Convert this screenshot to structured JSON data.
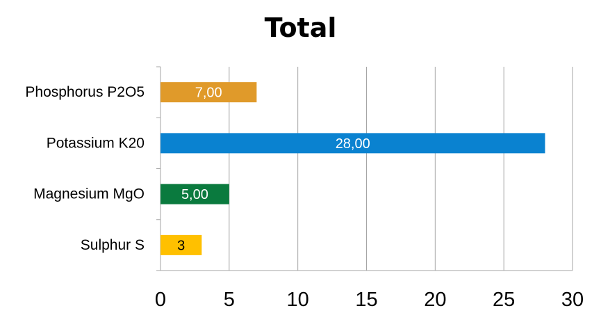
{
  "chart_data": {
    "type": "bar",
    "orientation": "horizontal",
    "title": "Total",
    "categories": [
      "Phosphorus P2O5",
      "Potassium K20",
      "Magnesium MgO",
      "Sulphur S"
    ],
    "values": [
      7,
      28,
      5,
      3
    ],
    "data_labels": [
      "7,00",
      "28,00",
      "5,00",
      "3"
    ],
    "bar_colors": [
      "#E09A2A",
      "#0A82D0",
      "#0A7A3E",
      "#FFC000"
    ],
    "data_label_colors": [
      "#ffffff",
      "#ffffff",
      "#ffffff",
      "#000000"
    ],
    "xlim": [
      0,
      30
    ],
    "xticks": [
      0,
      5,
      10,
      15,
      20,
      25,
      30
    ],
    "grid": true,
    "legend": "none"
  }
}
